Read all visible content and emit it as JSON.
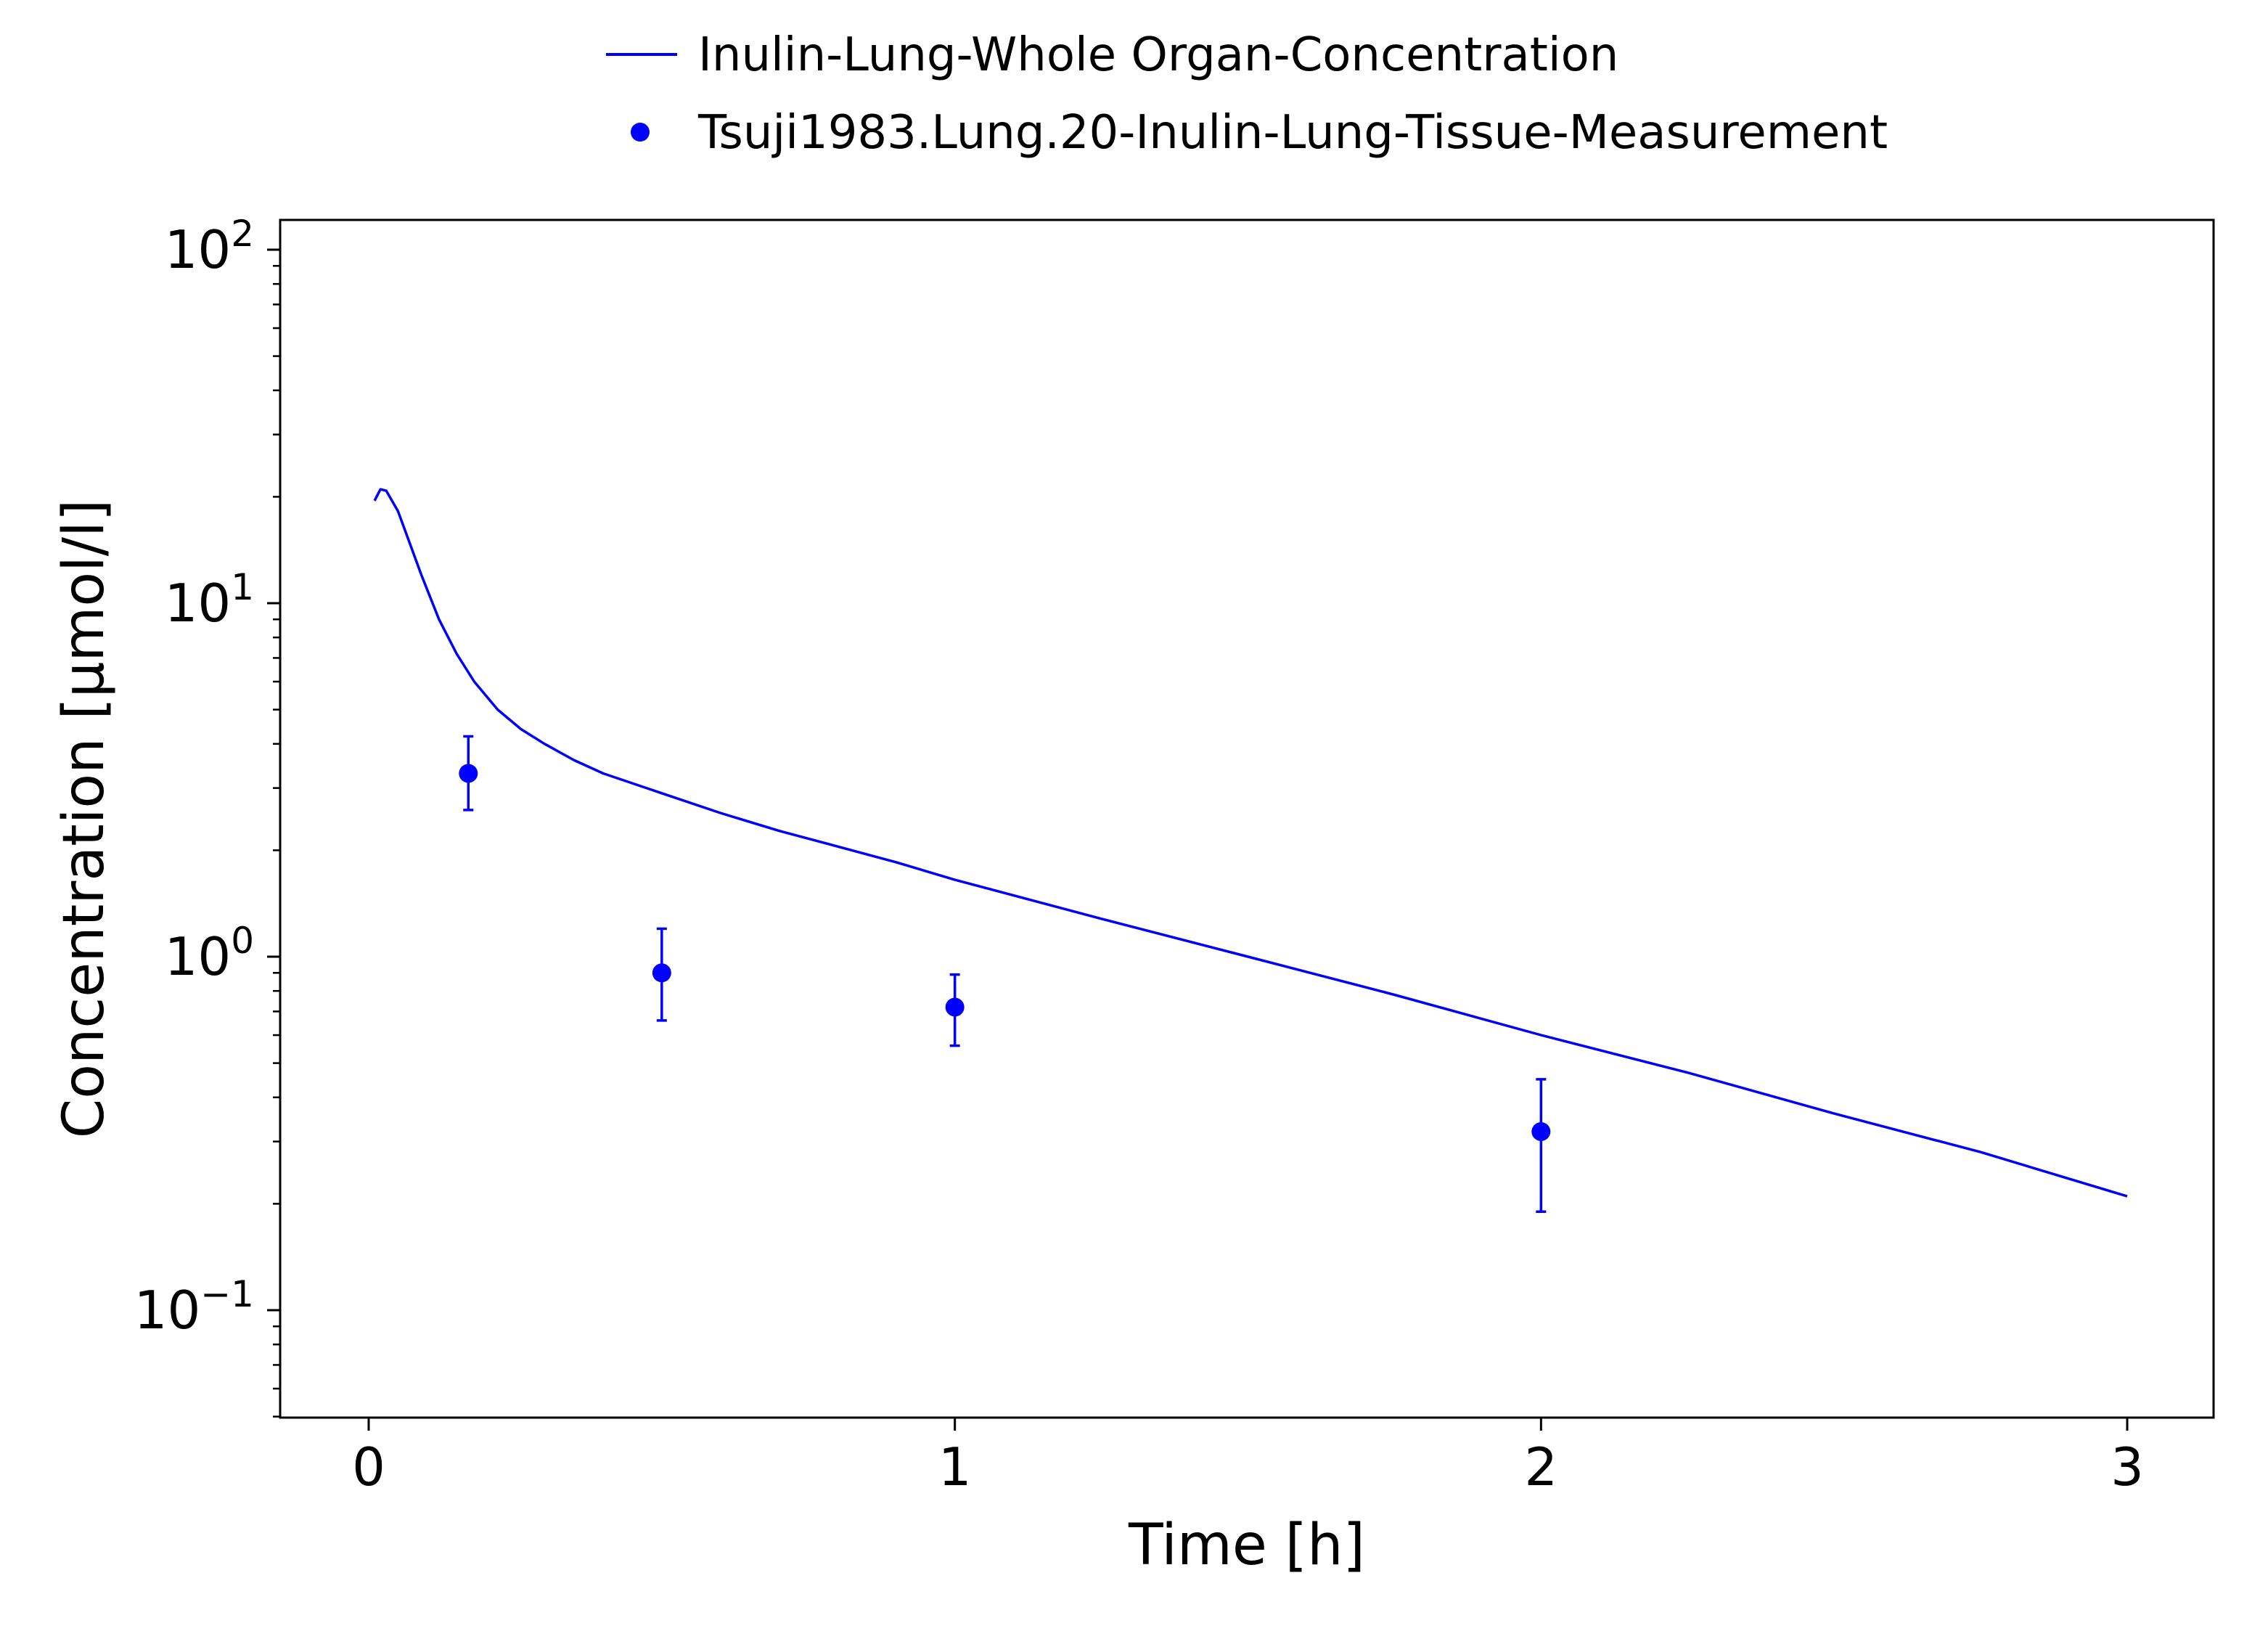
{
  "chart_data": {
    "type": "line",
    "title": "",
    "xlabel": "Time [h]",
    "ylabel": "Concentration [µmol/l]",
    "xlim": [
      -0.15,
      3.15
    ],
    "ylim": [
      0.05,
      120
    ],
    "yscale": "log",
    "grid": false,
    "legend_position": "top-center",
    "x_ticks": [
      {
        "value": 0,
        "label": "0"
      },
      {
        "value": 1,
        "label": "1"
      },
      {
        "value": 2,
        "label": "2"
      },
      {
        "value": 3,
        "label": "3"
      }
    ],
    "y_ticks": [
      {
        "value": 0.1,
        "base": "10",
        "exp": "−1"
      },
      {
        "value": 1,
        "base": "10",
        "exp": "0"
      },
      {
        "value": 10,
        "base": "10",
        "exp": "1"
      },
      {
        "value": 100,
        "base": "10",
        "exp": "2"
      }
    ],
    "series": [
      {
        "name": "Inulin-Lung-Whole Organ-Concentration",
        "kind": "line",
        "color": "#0000ff",
        "x": [
          0.01,
          0.02,
          0.03,
          0.05,
          0.07,
          0.09,
          0.12,
          0.15,
          0.18,
          0.22,
          0.26,
          0.3,
          0.35,
          0.4,
          0.5,
          0.6,
          0.7,
          0.8,
          0.9,
          1.0,
          1.25,
          1.5,
          1.75,
          2.0,
          2.25,
          2.5,
          2.75,
          3.0
        ],
        "y": [
          19.5,
          21.0,
          20.8,
          18.2,
          14.8,
          12.0,
          9.0,
          7.2,
          6.0,
          5.0,
          4.4,
          4.0,
          3.6,
          3.3,
          2.9,
          2.55,
          2.27,
          2.05,
          1.85,
          1.65,
          1.28,
          1.0,
          0.78,
          0.6,
          0.47,
          0.36,
          0.28,
          0.21
        ]
      },
      {
        "name": "Tsuji1983.Lung.20-Inulin-Lung-Tissue-Measurement",
        "kind": "scatter",
        "color": "#0000ff",
        "x": [
          0.17,
          0.5,
          1.0,
          2.0
        ],
        "y": [
          3.3,
          0.9,
          0.72,
          0.32
        ],
        "y_err_low": [
          2.6,
          0.66,
          0.56,
          0.19
        ],
        "y_err_high": [
          4.2,
          1.2,
          0.89,
          0.45
        ]
      }
    ]
  }
}
